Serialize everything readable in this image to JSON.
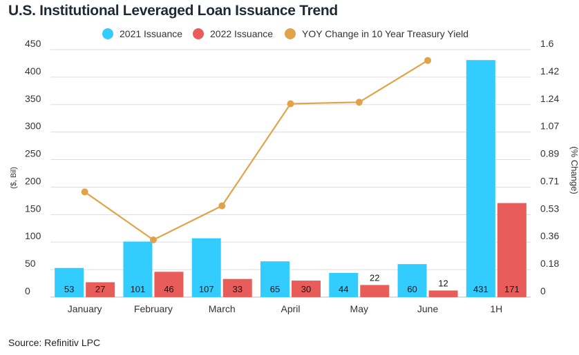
{
  "chart_data": {
    "type": "bar",
    "title": "U.S.  Institutional Leveraged Loan Issuance Trend",
    "source": "Source: Refinitiv LPC",
    "categories": [
      "January",
      "February",
      "March",
      "April",
      "May",
      "June",
      "1H"
    ],
    "series": [
      {
        "name": "2021 Issuance",
        "type": "bar",
        "axis": "left",
        "color": "#33ccff",
        "values": [
          53,
          101,
          107,
          65,
          44,
          60,
          431
        ],
        "labels": [
          "53",
          "101",
          "107",
          "65",
          "44",
          "60",
          "431"
        ]
      },
      {
        "name": "2022 Issuance",
        "type": "bar",
        "axis": "left",
        "color": "#e85c5a",
        "values": [
          27,
          46,
          33,
          30,
          22,
          12,
          171
        ],
        "labels": [
          "27",
          "46",
          "33",
          "30",
          "22",
          "12",
          "171"
        ]
      },
      {
        "name": "YOY Change in 10 Year Treasury Yield",
        "type": "line",
        "axis": "right",
        "color": "#e0a34a",
        "values": [
          0.68,
          0.37,
          0.59,
          1.25,
          1.26,
          1.53,
          null
        ]
      }
    ],
    "ylabel": "($, Bil)",
    "ylim": [
      0,
      450
    ],
    "yticks": [
      "0",
      "50",
      "100",
      "150",
      "200",
      "250",
      "300",
      "350",
      "400",
      "450"
    ],
    "y2label": "(% Change)",
    "y2lim": [
      0,
      1.6
    ],
    "y2ticks": [
      "0",
      "0.18",
      "0.36",
      "0.53",
      "0.71",
      "0.89",
      "1.07",
      "1.24",
      "1.42",
      "1.6"
    ],
    "grid": true,
    "legend": "top-center"
  }
}
